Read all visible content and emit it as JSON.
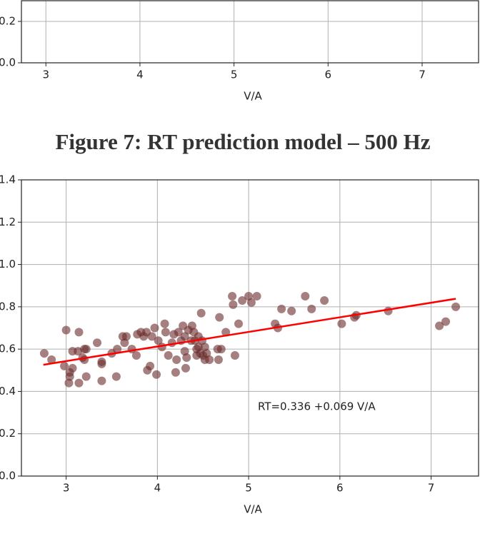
{
  "caption": "Figure 7: RT prediction model – 500 Hz",
  "chart_data": [
    {
      "type": "scatter",
      "xlabel": "V/A",
      "xlim": [
        2.74,
        7.6
      ],
      "ylim": [
        0,
        0.3
      ],
      "xticks": [
        3,
        4,
        5,
        6,
        7
      ],
      "yticks": [
        {
          "value": 0,
          "label": "0.0"
        },
        0.2
      ],
      "grid": true
    },
    {
      "type": "scatter",
      "xlabel": "V/A",
      "xlim": [
        2.51,
        7.52
      ],
      "ylim": [
        0,
        1.4
      ],
      "xticks": [
        3,
        4,
        5,
        6,
        7
      ],
      "yticks": [
        {
          "value": 0,
          "label": "0.0"
        },
        0.2,
        0.4,
        0.6,
        0.8,
        {
          "value": 1,
          "label": "1.0"
        },
        1.2,
        1.4
      ],
      "grid": true,
      "annotation": "RT=0.336 +0.069 V/A",
      "series": [
        {
          "color": "#6b2b2b",
          "x": [
            2.76,
            2.84,
            3.0,
            2.98,
            3.03,
            3.04,
            3.04,
            3.07,
            3.07,
            3.14,
            3.14,
            3.13,
            3.18,
            3.2,
            3.22,
            3.2,
            3.22,
            3.34,
            3.39,
            3.39,
            3.39,
            3.5,
            3.55,
            3.56,
            3.62,
            3.66,
            3.64,
            3.72,
            3.77,
            3.78,
            3.82,
            3.85,
            3.88,
            3.89,
            3.92,
            3.94,
            3.97,
            3.99,
            4.01,
            4.05,
            4.08,
            4.09,
            4.12,
            4.16,
            4.18,
            4.2,
            4.21,
            4.23,
            4.26,
            4.28,
            4.3,
            4.3,
            4.31,
            4.32,
            4.34,
            4.37,
            4.38,
            4.4,
            4.41,
            4.43,
            4.43,
            4.45,
            4.45,
            4.47,
            4.48,
            4.49,
            4.5,
            4.52,
            4.52,
            4.54,
            4.57,
            4.66,
            4.67,
            4.68,
            4.7,
            4.75,
            4.82,
            4.83,
            4.85,
            4.89,
            4.93,
            5.0,
            5.03,
            5.09,
            5.29,
            5.32,
            5.36,
            5.47,
            5.62,
            5.69,
            5.83,
            6.02,
            6.16,
            6.18,
            6.53,
            7.09,
            7.16,
            7.27
          ],
          "values": [
            0.58,
            0.55,
            0.69,
            0.52,
            0.44,
            0.49,
            0.47,
            0.59,
            0.51,
            0.68,
            0.44,
            0.59,
            0.56,
            0.6,
            0.6,
            0.55,
            0.47,
            0.63,
            0.45,
            0.54,
            0.53,
            0.58,
            0.47,
            0.6,
            0.66,
            0.66,
            0.63,
            0.6,
            0.57,
            0.67,
            0.68,
            0.66,
            0.68,
            0.5,
            0.52,
            0.66,
            0.7,
            0.48,
            0.64,
            0.61,
            0.72,
            0.68,
            0.57,
            0.63,
            0.67,
            0.49,
            0.55,
            0.68,
            0.64,
            0.71,
            0.66,
            0.59,
            0.51,
            0.56,
            0.69,
            0.64,
            0.71,
            0.68,
            0.64,
            0.6,
            0.57,
            0.66,
            0.61,
            0.58,
            0.77,
            0.64,
            0.57,
            0.61,
            0.55,
            0.58,
            0.55,
            0.6,
            0.55,
            0.75,
            0.6,
            0.68,
            0.85,
            0.81,
            0.57,
            0.72,
            0.83,
            0.85,
            0.82,
            0.85,
            0.72,
            0.7,
            0.79,
            0.78,
            0.85,
            0.79,
            0.83,
            0.72,
            0.75,
            0.76,
            0.78,
            0.71,
            0.73,
            0.8
          ]
        }
      ],
      "fit_line": {
        "color": "#ff0000",
        "x": [
          2.75,
          7.27
        ],
        "values": [
          0.526,
          0.838
        ]
      }
    }
  ]
}
